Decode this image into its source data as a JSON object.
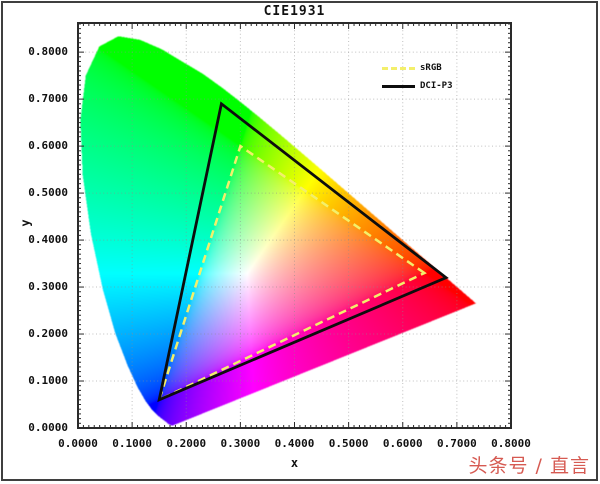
{
  "watermark": "头条号 / 直言",
  "chart_data": {
    "type": "chromaticity-diagram",
    "title": "CIE1931",
    "xlabel": "x",
    "ylabel": "y",
    "xlim": [
      0,
      0.8
    ],
    "ylim": [
      0,
      0.862
    ],
    "grid": "dotted",
    "x_ticks": [
      0,
      0.1,
      0.2,
      0.3,
      0.4,
      0.5,
      0.6,
      0.7,
      0.8
    ],
    "x_tick_labels": [
      "0.0000",
      "0.1000",
      "0.2000",
      "0.3000",
      "0.4000",
      "0.5000",
      "0.6000",
      "0.7000",
      "0.8000"
    ],
    "y_ticks": [
      0,
      0.1,
      0.2,
      0.3,
      0.4,
      0.5,
      0.6,
      0.7,
      0.8
    ],
    "y_tick_labels": [
      "0.0000",
      "0.1000",
      "0.2000",
      "0.3000",
      "0.4000",
      "0.5000",
      "0.6000",
      "0.7000",
      "0.8000"
    ],
    "legend": [
      {
        "label": "sRGB",
        "line_style": "dashed",
        "line_color": "#f3ef6b"
      },
      {
        "label": "DCI-P3",
        "line_style": "solid",
        "line_color": "#0d0d0d"
      }
    ],
    "gamut_triangles": [
      {
        "name": "sRGB",
        "vertices": [
          [
            0.64,
            0.33
          ],
          [
            0.3,
            0.6
          ],
          [
            0.15,
            0.06
          ]
        ],
        "stroke": "#f3ef6b",
        "dash": "8 5",
        "width": 2.5
      },
      {
        "name": "DCI-P3",
        "vertices": [
          [
            0.68,
            0.32
          ],
          [
            0.265,
            0.69
          ],
          [
            0.15,
            0.06
          ]
        ],
        "stroke": "#0d0d0d",
        "dash": "",
        "width": 2.8
      }
    ],
    "spectral_locus_xy": [
      [
        0.1741,
        0.005
      ],
      [
        0.1714,
        0.0059
      ],
      [
        0.1689,
        0.0069
      ],
      [
        0.1666,
        0.0086
      ],
      [
        0.1644,
        0.0109
      ],
      [
        0.1611,
        0.0138
      ],
      [
        0.1566,
        0.0177
      ],
      [
        0.151,
        0.0227
      ],
      [
        0.144,
        0.0297
      ],
      [
        0.1355,
        0.0399
      ],
      [
        0.1241,
        0.0578
      ],
      [
        0.1096,
        0.0868
      ],
      [
        0.0913,
        0.1327
      ],
      [
        0.0687,
        0.2007
      ],
      [
        0.0454,
        0.295
      ],
      [
        0.0235,
        0.4127
      ],
      [
        0.0082,
        0.5384
      ],
      [
        0.0039,
        0.6548
      ],
      [
        0.0139,
        0.7502
      ],
      [
        0.0389,
        0.812
      ],
      [
        0.0743,
        0.8338
      ],
      [
        0.1142,
        0.8262
      ],
      [
        0.1547,
        0.8059
      ],
      [
        0.1896,
        0.7816
      ],
      [
        0.2296,
        0.7543
      ],
      [
        0.2658,
        0.7243
      ],
      [
        0.3016,
        0.6923
      ],
      [
        0.3373,
        0.6589
      ],
      [
        0.3731,
        0.6245
      ],
      [
        0.4087,
        0.5896
      ],
      [
        0.4441,
        0.5547
      ],
      [
        0.4788,
        0.5202
      ],
      [
        0.5125,
        0.4866
      ],
      [
        0.5448,
        0.4544
      ],
      [
        0.5752,
        0.4242
      ],
      [
        0.6029,
        0.3965
      ],
      [
        0.627,
        0.3725
      ],
      [
        0.6482,
        0.3514
      ],
      [
        0.6658,
        0.334
      ],
      [
        0.6801,
        0.3197
      ],
      [
        0.6915,
        0.3083
      ],
      [
        0.7006,
        0.2993
      ],
      [
        0.7079,
        0.292
      ],
      [
        0.714,
        0.2859
      ],
      [
        0.719,
        0.2809
      ],
      [
        0.723,
        0.277
      ],
      [
        0.726,
        0.274
      ],
      [
        0.7283,
        0.2717
      ],
      [
        0.73,
        0.27
      ],
      [
        0.732,
        0.268
      ],
      [
        0.7334,
        0.2666
      ],
      [
        0.7344,
        0.2656
      ],
      [
        0.7347,
        0.2653
      ]
    ]
  }
}
